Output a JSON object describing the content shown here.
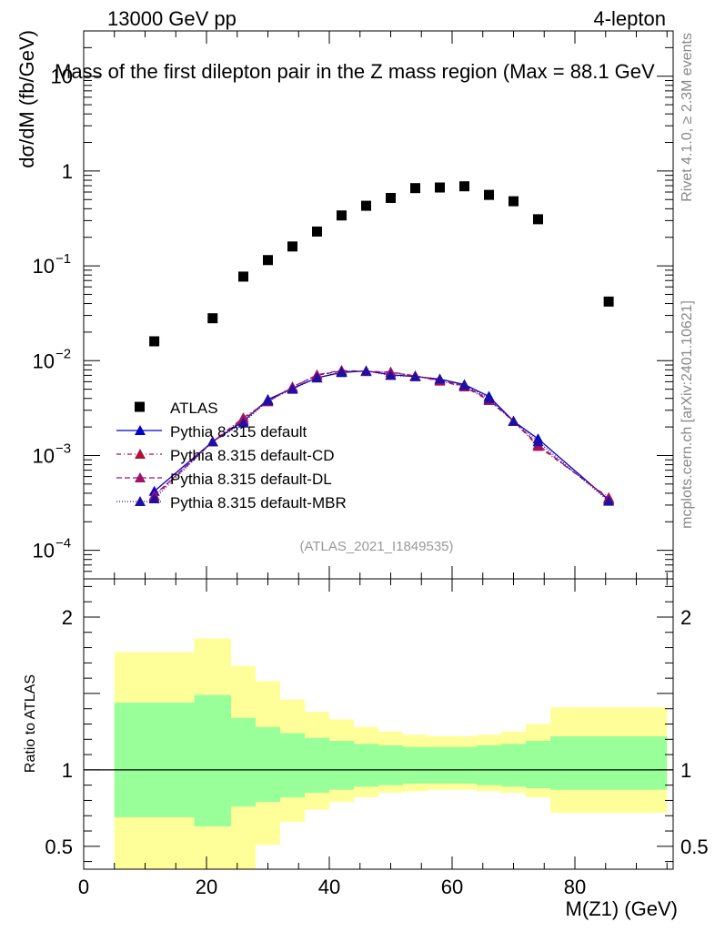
{
  "header": {
    "energy": "13000 GeV pp",
    "channel": "4-lepton"
  },
  "side": {
    "rivet": "Rivet 4.1.0, ≥ 2.3M events",
    "mcplots": "mcplots.cern.ch [arXiv:2401.10621]"
  },
  "chart_data": {
    "type": "scatter",
    "title": "Mass of the first dilepton pair in the Z mass region (Max = 88.1 GeV",
    "ylabel": "dσ/dM (fb/GeV)",
    "xlabel": "M(Z1) (GeV)",
    "ratio_ylabel": "Ratio to ATLAS",
    "watermark": "(ATLAS_2021_I1849535)",
    "xlim": [
      0,
      96
    ],
    "ylim_log": [
      5e-05,
      30
    ],
    "ratio_ylim": [
      0.35,
      2.25
    ],
    "x_ticks": [
      "0",
      "20",
      "40",
      "60",
      "80"
    ],
    "y_ticks": [
      {
        "base": "10",
        "exp": ""
      },
      {
        "base": "1",
        "exp": ""
      },
      {
        "base": "10",
        "exp": "−1"
      },
      {
        "base": "10",
        "exp": "−2"
      },
      {
        "base": "10",
        "exp": "−3"
      },
      {
        "base": "10",
        "exp": "−4"
      }
    ],
    "ratio_ticks": [
      "2",
      "1",
      "0.5"
    ],
    "bins": [
      [
        5,
        18
      ],
      [
        18,
        24
      ],
      [
        24,
        28
      ],
      [
        28,
        32
      ],
      [
        32,
        36
      ],
      [
        36,
        40
      ],
      [
        40,
        44
      ],
      [
        44,
        48
      ],
      [
        48,
        52
      ],
      [
        52,
        56
      ],
      [
        56,
        60
      ],
      [
        60,
        64
      ],
      [
        64,
        68
      ],
      [
        68,
        72
      ],
      [
        72,
        76
      ],
      [
        76,
        95
      ]
    ],
    "x": [
      11.5,
      21,
      26,
      30,
      34,
      38,
      42,
      46,
      50,
      54,
      58,
      62,
      66,
      70,
      74,
      85.5
    ],
    "data": {
      "name": "ATLAS",
      "values": [
        0.016,
        0.028,
        0.077,
        0.115,
        0.16,
        0.23,
        0.34,
        0.43,
        0.52,
        0.66,
        0.67,
        0.69,
        0.56,
        0.48,
        0.31,
        0.042
      ]
    },
    "series": [
      {
        "name": "Pythia 8.315 default",
        "color": "#0000cc",
        "dash": "",
        "values": [
          0.00042,
          0.0014,
          0.0023,
          0.0039,
          0.0051,
          0.0066,
          0.0075,
          0.0078,
          0.0071,
          0.0068,
          0.0064,
          0.0056,
          0.0042,
          0.0023,
          0.0015,
          0.00034
        ]
      },
      {
        "name": "Pythia 8.315 default-CD",
        "color": "#b0103c",
        "dash": "5,3,1,3",
        "values": [
          0.00037,
          0.0014,
          0.0025,
          0.0037,
          0.0052,
          0.0071,
          0.0079,
          0.0077,
          0.0076,
          0.0069,
          0.0061,
          0.0053,
          0.0038,
          0.0023,
          0.00125,
          0.00036
        ]
      },
      {
        "name": "Pythia 8.315 default-DL",
        "color": "#a01070",
        "dash": "6,3",
        "values": [
          0.00038,
          0.0014,
          0.0024,
          0.0037,
          0.0053,
          0.007,
          0.0078,
          0.0077,
          0.0075,
          0.0069,
          0.0062,
          0.0054,
          0.0039,
          0.0023,
          0.0013,
          0.00035
        ]
      },
      {
        "name": "Pythia 8.315 default-MBR",
        "color": "#2010a0",
        "dash": "1,2",
        "values": [
          0.00035,
          0.0014,
          0.0022,
          0.0038,
          0.005,
          0.0066,
          0.0076,
          0.0078,
          0.007,
          0.0068,
          0.0064,
          0.0055,
          0.004,
          0.0023,
          0.0014,
          0.00033
        ]
      }
    ],
    "ratio_band_stat": [
      [
        0.69,
        1.44
      ],
      [
        0.63,
        1.49
      ],
      [
        0.76,
        1.34
      ],
      [
        0.79,
        1.28
      ],
      [
        0.82,
        1.24
      ],
      [
        0.85,
        1.21
      ],
      [
        0.87,
        1.19
      ],
      [
        0.89,
        1.17
      ],
      [
        0.9,
        1.16
      ],
      [
        0.91,
        1.15
      ],
      [
        0.91,
        1.15
      ],
      [
        0.91,
        1.15
      ],
      [
        0.9,
        1.16
      ],
      [
        0.89,
        1.17
      ],
      [
        0.88,
        1.19
      ],
      [
        0.87,
        1.22
      ]
    ],
    "ratio_band_total": [
      [
        0.35,
        1.77
      ],
      [
        0.35,
        1.86
      ],
      [
        0.35,
        1.68
      ],
      [
        0.51,
        1.58
      ],
      [
        0.66,
        1.46
      ],
      [
        0.74,
        1.38
      ],
      [
        0.79,
        1.33
      ],
      [
        0.82,
        1.28
      ],
      [
        0.85,
        1.25
      ],
      [
        0.86,
        1.23
      ],
      [
        0.87,
        1.22
      ],
      [
        0.87,
        1.22
      ],
      [
        0.86,
        1.23
      ],
      [
        0.85,
        1.25
      ],
      [
        0.82,
        1.3
      ],
      [
        0.72,
        1.41
      ]
    ],
    "colors": {
      "stat": "#99ff99",
      "total": "#ffff99",
      "data": "#000000"
    }
  }
}
